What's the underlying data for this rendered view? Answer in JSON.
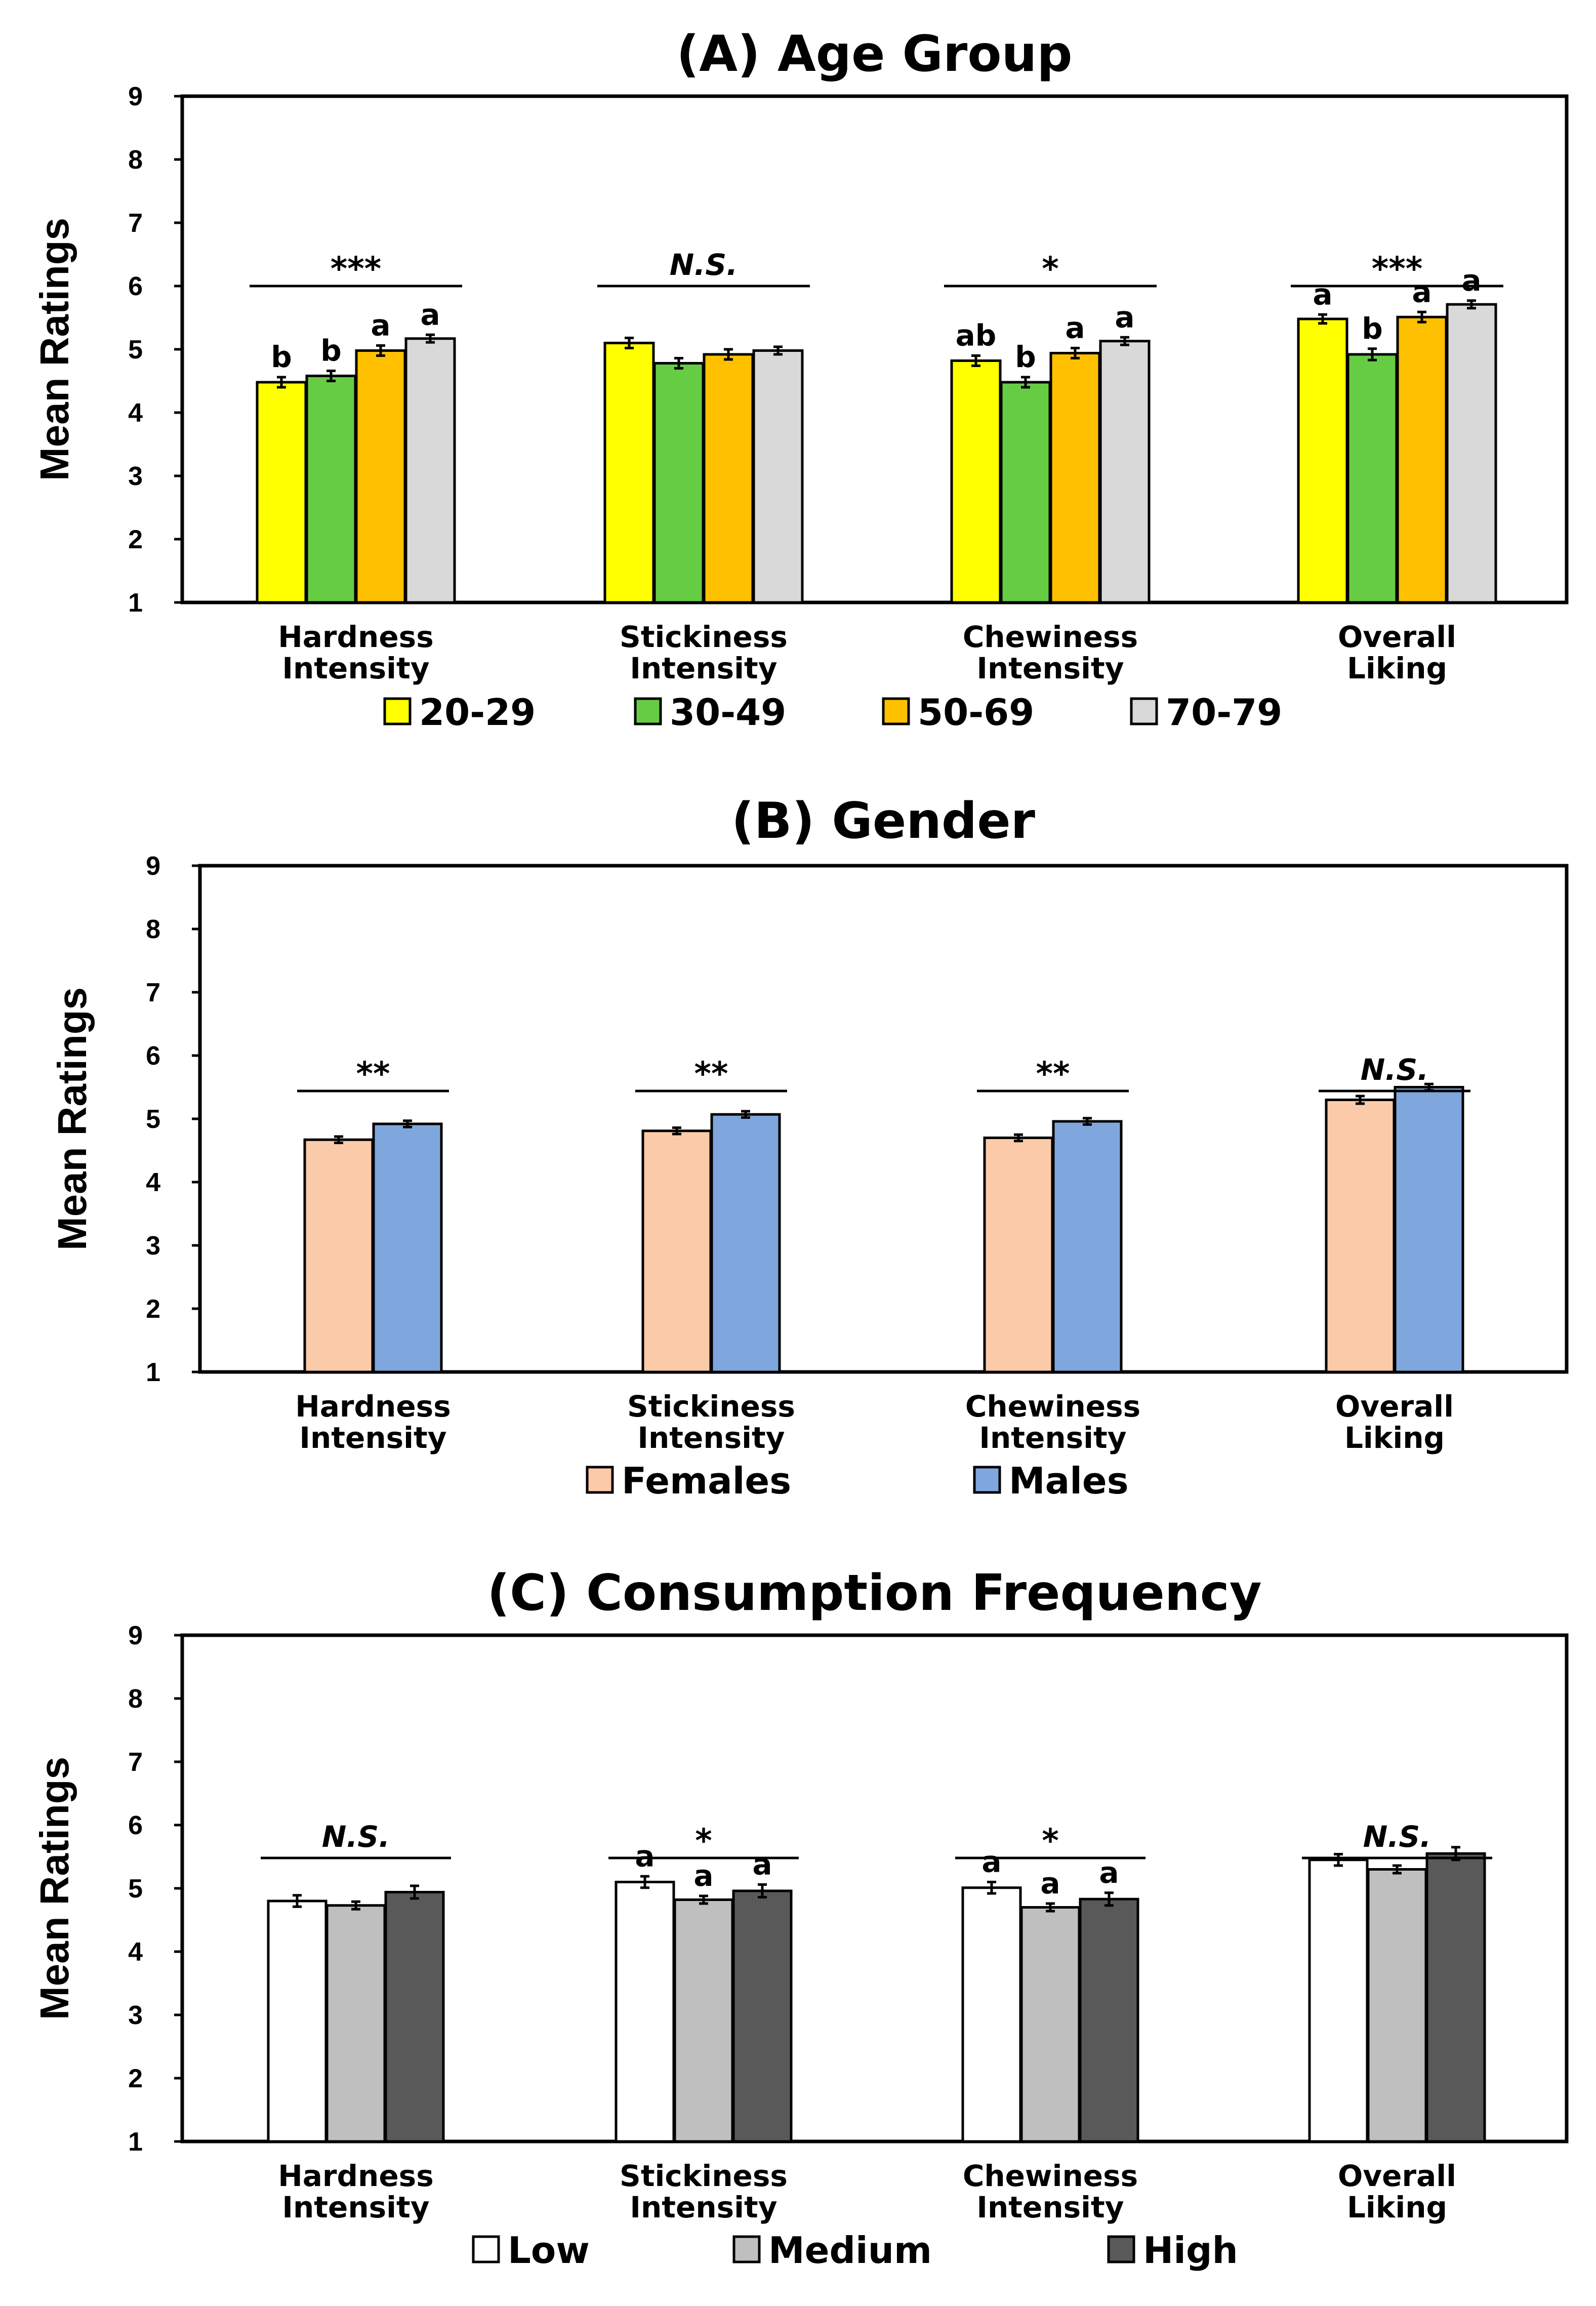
{
  "chart_data": [
    {
      "type": "bar",
      "title": "(A) Age Group",
      "ylabel": "Mean Ratings",
      "xlabel": "",
      "ylim": [
        1,
        9
      ],
      "yticks": [
        1,
        2,
        3,
        4,
        5,
        6,
        7,
        8,
        9
      ],
      "grid": false,
      "legend_position": "bottom",
      "categories": [
        [
          "Hardness",
          "Intensity"
        ],
        [
          "Stickiness",
          "Intensity"
        ],
        [
          "Chewiness",
          "Intensity"
        ],
        [
          "Overall",
          "Liking"
        ]
      ],
      "series": [
        {
          "name": "20-29",
          "color": "#ffff00",
          "values": [
            4.48,
            5.1,
            4.82,
            5.48
          ],
          "errors": [
            0.08,
            0.08,
            0.08,
            0.07
          ],
          "letters": [
            "b",
            "",
            "ab",
            "a"
          ]
        },
        {
          "name": "30-49",
          "color": "#66cc44",
          "values": [
            4.58,
            4.78,
            4.48,
            4.92
          ],
          "errors": [
            0.08,
            0.08,
            0.08,
            0.09
          ],
          "letters": [
            "b",
            "",
            "b",
            "b"
          ]
        },
        {
          "name": "50-69",
          "color": "#ffc000",
          "values": [
            4.98,
            4.92,
            4.94,
            5.51
          ],
          "errors": [
            0.08,
            0.08,
            0.08,
            0.08
          ],
          "letters": [
            "a",
            "",
            "a",
            "a"
          ]
        },
        {
          "name": "70-79",
          "color": "#d9d9d9",
          "values": [
            5.17,
            4.98,
            5.13,
            5.71
          ],
          "errors": [
            0.06,
            0.06,
            0.06,
            0.06
          ],
          "letters": [
            "a",
            "",
            "a",
            "a"
          ]
        }
      ],
      "significance": [
        "***",
        "N.S.",
        "*",
        "***"
      ]
    },
    {
      "type": "bar",
      "title": "(B) Gender",
      "ylabel": "Mean Ratings",
      "xlabel": "",
      "ylim": [
        1,
        9
      ],
      "yticks": [
        1,
        2,
        3,
        4,
        5,
        6,
        7,
        8,
        9
      ],
      "grid": false,
      "legend_position": "bottom",
      "categories": [
        [
          "Hardness",
          "Intensity"
        ],
        [
          "Stickiness",
          "Intensity"
        ],
        [
          "Chewiness",
          "Intensity"
        ],
        [
          "Overall",
          "Liking"
        ]
      ],
      "series": [
        {
          "name": "Females",
          "color": "#fbcaa8",
          "values": [
            4.67,
            4.81,
            4.7,
            5.3
          ],
          "errors": [
            0.05,
            0.05,
            0.05,
            0.06
          ],
          "letters": [
            "",
            "",
            "",
            ""
          ]
        },
        {
          "name": "Males",
          "color": "#7fa7dd",
          "values": [
            4.92,
            5.07,
            4.96,
            5.5
          ],
          "errors": [
            0.05,
            0.05,
            0.05,
            0.05
          ],
          "letters": [
            "",
            "",
            "",
            ""
          ]
        }
      ],
      "significance": [
        "**",
        "**",
        "**",
        "N.S."
      ]
    },
    {
      "type": "bar",
      "title": "(C) Consumption Frequency",
      "ylabel": "Mean Ratings",
      "xlabel": "",
      "ylim": [
        1,
        9
      ],
      "yticks": [
        1,
        2,
        3,
        4,
        5,
        6,
        7,
        8,
        9
      ],
      "grid": false,
      "legend_position": "bottom",
      "categories": [
        [
          "Hardness",
          "Intensity"
        ],
        [
          "Stickiness",
          "Intensity"
        ],
        [
          "Chewiness",
          "Intensity"
        ],
        [
          "Overall",
          "Liking"
        ]
      ],
      "series": [
        {
          "name": "Low",
          "color": "#ffffff",
          "values": [
            4.8,
            5.1,
            5.01,
            5.45
          ],
          "errors": [
            0.09,
            0.09,
            0.09,
            0.09
          ],
          "letters": [
            "",
            "a",
            "a",
            ""
          ]
        },
        {
          "name": "Medium",
          "color": "#bfbfbf",
          "values": [
            4.73,
            4.82,
            4.7,
            5.3
          ],
          "errors": [
            0.06,
            0.06,
            0.06,
            0.06
          ],
          "letters": [
            "",
            "a",
            "a",
            ""
          ]
        },
        {
          "name": "High",
          "color": "#595959",
          "values": [
            4.94,
            4.96,
            4.83,
            5.55
          ],
          "errors": [
            0.1,
            0.1,
            0.1,
            0.1
          ],
          "letters": [
            "",
            "a",
            "a",
            ""
          ]
        }
      ],
      "significance": [
        "N.S.",
        "*",
        "*",
        "N.S."
      ]
    }
  ]
}
